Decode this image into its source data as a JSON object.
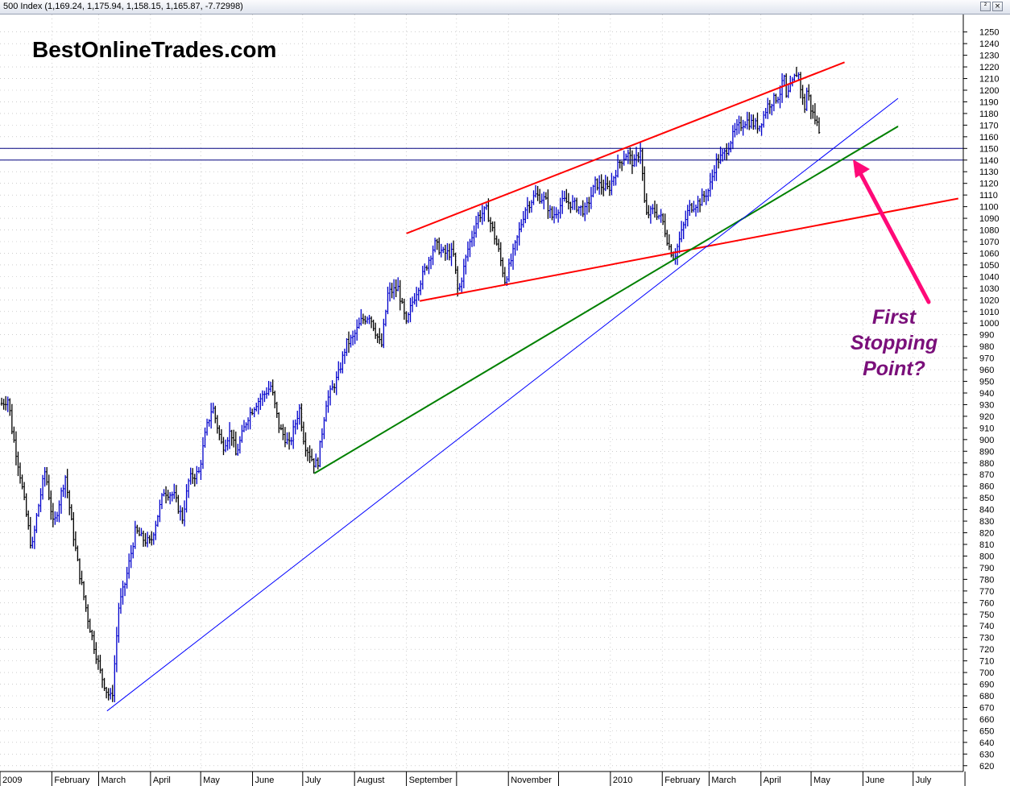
{
  "window": {
    "title": "500 Index (1,169.24, 1,175.94, 1,158.15, 1,165.87, -7.72998)",
    "restore_glyph": "²",
    "close_glyph": "×"
  },
  "watermark": "BestOnlineTrades.com",
  "annotation": [
    "First",
    "Stopping",
    "Point?"
  ],
  "colors": {
    "up_bar": "#0000cc",
    "down_bar": "#000000",
    "channel_line": "#ff0000",
    "support_line_green": "#008000",
    "trend_line_blue": "#0000ff",
    "horizontal_level": "#00007f",
    "arrow": "#ff0a78",
    "grid": "#b0b0b0"
  },
  "chart_data": {
    "type": "bar",
    "subtype": "ohlc",
    "y_axis": {
      "min": 615,
      "max": 1265,
      "tick_start": 620,
      "tick_end": 1250,
      "tick_step": 10,
      "position": "right"
    },
    "x_axis": {
      "labels": [
        "2009",
        "February",
        "March",
        "April",
        "May",
        "June",
        "July",
        "August",
        "September",
        "November",
        "2010",
        "February",
        "March",
        "April",
        "May",
        "June",
        "July"
      ],
      "start": "2009-01-01",
      "end": "2010-07-31"
    },
    "grid": true,
    "series": [
      {
        "points": [
          [
            "2009-01-02",
            931
          ],
          [
            "2009-01-06",
            935
          ],
          [
            "2009-01-08",
            910
          ],
          [
            "2009-01-13",
            870
          ],
          [
            "2009-01-20",
            805
          ],
          [
            "2009-01-23",
            835
          ],
          [
            "2009-01-28",
            874
          ],
          [
            "2009-02-02",
            825
          ],
          [
            "2009-02-09",
            869
          ],
          [
            "2009-02-13",
            826
          ],
          [
            "2009-02-17",
            789
          ],
          [
            "2009-02-23",
            743
          ],
          [
            "2009-03-02",
            700
          ],
          [
            "2009-03-06",
            683
          ],
          [
            "2009-03-09",
            677
          ],
          [
            "2009-03-13",
            756
          ],
          [
            "2009-03-17",
            778
          ],
          [
            "2009-03-23",
            822
          ],
          [
            "2009-03-27",
            815
          ],
          [
            "2009-04-01",
            811
          ],
          [
            "2009-04-09",
            856
          ],
          [
            "2009-04-15",
            852
          ],
          [
            "2009-04-20",
            832
          ],
          [
            "2009-04-24",
            866
          ],
          [
            "2009-04-30",
            872
          ],
          [
            "2009-05-04",
            907
          ],
          [
            "2009-05-08",
            929
          ],
          [
            "2009-05-14",
            893
          ],
          [
            "2009-05-19",
            908
          ],
          [
            "2009-05-22",
            887
          ],
          [
            "2009-05-29",
            919
          ],
          [
            "2009-06-03",
            931
          ],
          [
            "2009-06-08",
            939
          ],
          [
            "2009-06-12",
            946
          ],
          [
            "2009-06-17",
            910
          ],
          [
            "2009-06-23",
            895
          ],
          [
            "2009-06-29",
            927
          ],
          [
            "2009-07-02",
            897
          ],
          [
            "2009-07-08",
            879
          ],
          [
            "2009-07-10",
            880
          ],
          [
            "2009-07-15",
            932
          ],
          [
            "2009-07-22",
            954
          ],
          [
            "2009-07-27",
            982
          ],
          [
            "2009-07-31",
            987
          ],
          [
            "2009-08-05",
            1002
          ],
          [
            "2009-08-10",
            1007
          ],
          [
            "2009-08-17",
            979
          ],
          [
            "2009-08-21",
            1026
          ],
          [
            "2009-08-27",
            1030
          ],
          [
            "2009-09-01",
            998
          ],
          [
            "2009-09-04",
            1016
          ],
          [
            "2009-09-11",
            1042
          ],
          [
            "2009-09-18",
            1068
          ],
          [
            "2009-09-23",
            1060
          ],
          [
            "2009-09-29",
            1060
          ],
          [
            "2009-10-02",
            1025
          ],
          [
            "2009-10-08",
            1065
          ],
          [
            "2009-10-14",
            1092
          ],
          [
            "2009-10-19",
            1097
          ],
          [
            "2009-10-26",
            1063
          ],
          [
            "2009-10-30",
            1036
          ],
          [
            "2009-11-05",
            1066
          ],
          [
            "2009-11-11",
            1098
          ],
          [
            "2009-11-17",
            1110
          ],
          [
            "2009-11-23",
            1106
          ],
          [
            "2009-11-27",
            1091
          ],
          [
            "2009-12-04",
            1105
          ],
          [
            "2009-12-10",
            1102
          ],
          [
            "2009-12-17",
            1096
          ],
          [
            "2009-12-23",
            1120
          ],
          [
            "2009-12-31",
            1115
          ],
          [
            "2010-01-06",
            1137
          ],
          [
            "2010-01-11",
            1146
          ],
          [
            "2010-01-15",
            1136
          ],
          [
            "2010-01-19",
            1150
          ],
          [
            "2010-01-22",
            1092
          ],
          [
            "2010-01-27",
            1097
          ],
          [
            "2010-02-01",
            1089
          ],
          [
            "2010-02-05",
            1066
          ],
          [
            "2010-02-08",
            1056
          ],
          [
            "2010-02-12",
            1075
          ],
          [
            "2010-02-17",
            1099
          ],
          [
            "2010-02-24",
            1105
          ],
          [
            "2010-03-01",
            1115
          ],
          [
            "2010-03-05",
            1138
          ],
          [
            "2010-03-10",
            1145
          ],
          [
            "2010-03-17",
            1166
          ],
          [
            "2010-03-23",
            1174
          ],
          [
            "2010-03-31",
            1169
          ],
          [
            "2010-04-05",
            1187
          ],
          [
            "2010-04-12",
            1196
          ],
          [
            "2010-04-15",
            1211
          ],
          [
            "2010-04-16",
            1192
          ],
          [
            "2010-04-20",
            1207
          ],
          [
            "2010-04-23",
            1217
          ],
          [
            "2010-04-27",
            1183
          ],
          [
            "2010-04-29",
            1206
          ],
          [
            "2010-04-30",
            1187
          ],
          [
            "2010-05-04",
            1173
          ],
          [
            "2010-05-06",
            1166
          ]
        ]
      }
    ],
    "trendlines": [
      {
        "color": "red",
        "from": [
          "2009-09-01",
          1077
        ],
        "to": [
          "2010-05-21",
          1224
        ]
      },
      {
        "color": "red",
        "from": [
          "2009-09-09",
          1019
        ],
        "to": [
          "2010-07-28",
          1107
        ]
      },
      {
        "color": "green",
        "from": [
          "2009-07-08",
          871
        ],
        "to": [
          "2010-06-22",
          1169
        ]
      },
      {
        "color": "blue",
        "from": [
          "2009-03-06",
          667
        ],
        "to": [
          "2010-06-22",
          1193
        ]
      }
    ],
    "horizontal_levels": [
      1150,
      1140
    ]
  }
}
